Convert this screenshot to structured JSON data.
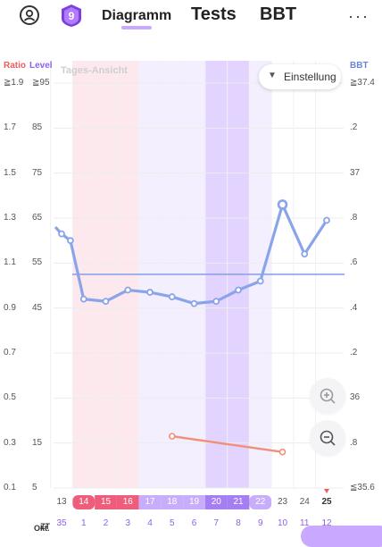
{
  "header": {
    "badge_number": "9",
    "tabs": [
      {
        "label": "Diagramm",
        "active": true
      },
      {
        "label": "Tests",
        "active": false
      },
      {
        "label": "BBT",
        "active": false
      }
    ],
    "more_label": "···"
  },
  "chart": {
    "left_axis_ratio_title": "Ratio",
    "left_axis_level_title": "Level",
    "right_axis_title": "BBT",
    "ratio_ticks": [
      "≧1.9",
      "1.7",
      "1.5",
      "1.3",
      "1.1",
      "0.9",
      "0.7",
      "0.5",
      "0.3",
      "0.1"
    ],
    "level_ticks": [
      "≧95",
      "85",
      "75",
      "65",
      "55",
      "45",
      "",
      "",
      "15",
      "5"
    ],
    "bbt_ticks": [
      "≧37.4",
      ".2",
      "37",
      ".8",
      ".6",
      ".4",
      ".2",
      "36",
      ".8",
      "≦35.6"
    ],
    "day_view_label": "Tages-Ansicht",
    "settings_label": "Einstellung",
    "month_label": "Okt.",
    "zt_label": "ZT",
    "colors": {
      "bbt_line": "#8aa4ea",
      "ratio_line": "#f0907a",
      "coverline": "#8aa4ea",
      "pink_band": "#fde8ee",
      "lavender_band": "#f3efff",
      "purple_band": "#e2d4ff",
      "pink_chip": "#ee5d7c",
      "light_chip": "#c8aefa",
      "dark_chip": "#a57ff2",
      "today_marker": "#ee5d5d"
    }
  },
  "chart_data": {
    "type": "line",
    "x": [
      "13",
      "14",
      "15",
      "16",
      "17",
      "18",
      "19",
      "20",
      "21",
      "22",
      "23",
      "24",
      "25"
    ],
    "cycle_days": [
      "35",
      "1",
      "2",
      "3",
      "4",
      "5",
      "6",
      "7",
      "8",
      "9",
      "10",
      "11",
      "12"
    ],
    "phase_of_day": [
      "none",
      "period",
      "period",
      "period",
      "fertile",
      "fertile",
      "fertile",
      "peak",
      "peak",
      "fertile",
      "none",
      "none",
      "none"
    ],
    "today": "25",
    "series": [
      {
        "name": "BBT",
        "axis": "right",
        "x": [
          "13",
          "13.4",
          "14",
          "15",
          "16",
          "17",
          "18",
          "19",
          "20",
          "21",
          "22",
          "23",
          "24",
          "25"
        ],
        "values": [
          36.73,
          36.7,
          36.44,
          36.43,
          36.48,
          36.47,
          36.45,
          36.42,
          36.43,
          36.48,
          36.52,
          36.86,
          36.64,
          36.79
        ]
      },
      {
        "name": "Ratio",
        "axis": "left",
        "x": [
          "18",
          "23"
        ],
        "values": [
          0.33,
          0.26
        ]
      }
    ],
    "coverline_bbt": 36.55,
    "ratio_range": [
      0.1,
      1.9
    ],
    "level_range": [
      5,
      95
    ],
    "bbt_range": [
      35.6,
      37.4
    ]
  },
  "actions": {
    "zoom_in_icon": "zoom-in-icon",
    "zoom_out_icon": "zoom-out-icon",
    "settings_icon": "chevron-down-icon"
  }
}
